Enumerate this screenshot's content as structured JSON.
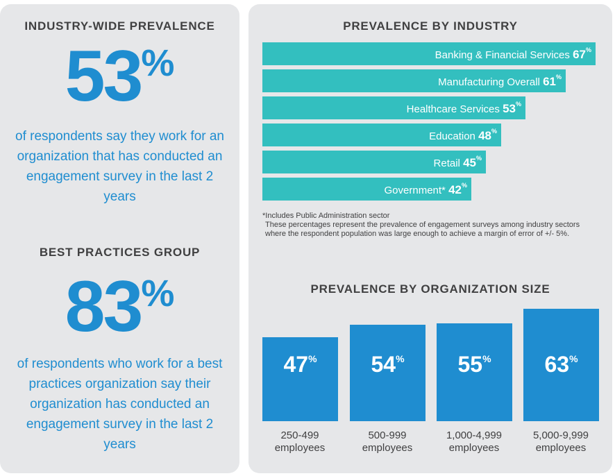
{
  "left": {
    "industry_heading": "INDUSTRY-WIDE PREVALENCE",
    "industry_number": "53",
    "industry_pct": "%",
    "industry_desc": "of respondents say they work for an organization that has conducted an engagement survey in the last 2 years",
    "best_heading": "BEST PRACTICES GROUP",
    "best_number": "83",
    "best_pct": "%",
    "best_desc": "of respondents who work for a best practices organization say their organization has conducted an engagement survey in the last 2 years"
  },
  "colors": {
    "accent_blue": "#1f8dd0",
    "teal": "#33bfbf",
    "panel_bg": "#e6e7e9",
    "text_dark": "#404041"
  },
  "footnote": {
    "line1": "*Includes Public Administration sector",
    "line2": "These percentages represent the prevalence of engagement surveys among industry sectors where the respondent population was large enough to achieve a margin of error of +/- 5%."
  },
  "chart_data": [
    {
      "type": "bar",
      "orientation": "horizontal",
      "title": "PREVALENCE BY INDUSTRY",
      "categories": [
        "Banking & Financial Services",
        "Manufacturing Overall",
        "Healthcare Services",
        "Education",
        "Retail",
        "Government*"
      ],
      "values": [
        67,
        61,
        53,
        48,
        45,
        42
      ],
      "value_labels": [
        "67",
        "61",
        "53",
        "48",
        "45",
        "42"
      ],
      "unit": "%"
    },
    {
      "type": "bar",
      "title": "PREVALENCE BY ORGANIZATION SIZE",
      "categories": [
        "250-499 employees",
        "500-999 employees",
        "1,000-4,999 employees",
        "5,000-9,999 employees"
      ],
      "categories_line1": [
        "250-499",
        "500-999",
        "1,000-4,999",
        "5,000-9,999"
      ],
      "categories_line2": [
        "employees",
        "employees",
        "employees",
        "employees"
      ],
      "values": [
        47,
        54,
        55,
        63
      ],
      "value_labels": [
        "47",
        "54",
        "55",
        "63"
      ],
      "unit": "%"
    }
  ]
}
